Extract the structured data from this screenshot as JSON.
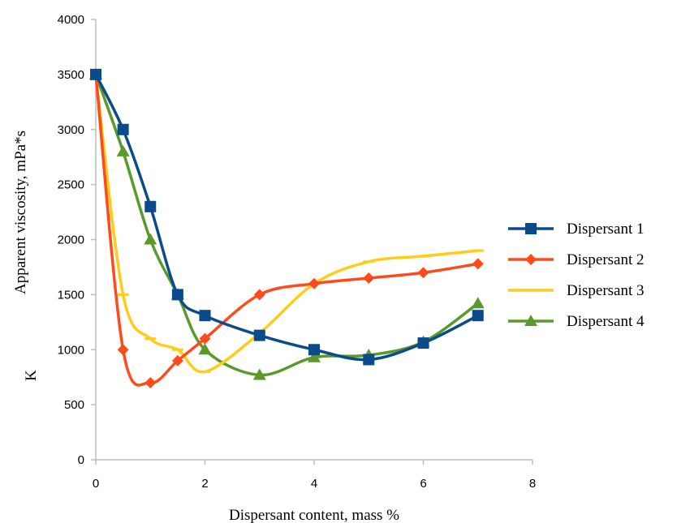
{
  "chart_data": {
    "type": "line",
    "title": "",
    "xlabel": "Dispersant content, mass %",
    "ylabel": "Apparent viscosity, mPa*s",
    "ylabel_extra": "K",
    "xlim": [
      0,
      8
    ],
    "ylim": [
      0,
      4000
    ],
    "x_ticks": [
      0,
      2,
      4,
      6,
      8
    ],
    "y_ticks": [
      0,
      500,
      1000,
      1500,
      2000,
      2500,
      3000,
      3500,
      4000
    ],
    "grid": false,
    "smooth": true,
    "legend_position": "right",
    "series": [
      {
        "name": "Dispersant 1",
        "color": "#0b4a8b",
        "marker": "square",
        "x": [
          0,
          0.5,
          1,
          1.5,
          2,
          3,
          4,
          5,
          6,
          7
        ],
        "y": [
          3500,
          3000,
          2300,
          1500,
          1310,
          1130,
          1000,
          910,
          1060,
          1310
        ]
      },
      {
        "name": "Dispersant 2",
        "color": "#ff4a1c",
        "marker": "diamond",
        "x": [
          0,
          0.5,
          1,
          1.5,
          2,
          3,
          4,
          5,
          6,
          7
        ],
        "y": [
          3500,
          1000,
          700,
          900,
          1100,
          1500,
          1600,
          1650,
          1700,
          1780
        ]
      },
      {
        "name": "Dispersant 3",
        "color": "#ffcc1a",
        "marker": "dash",
        "x": [
          0,
          0.5,
          1,
          1.5,
          2,
          3,
          4,
          5,
          6,
          7
        ],
        "y": [
          3500,
          1500,
          1100,
          1000,
          800,
          1150,
          1600,
          1800,
          1850,
          1900
        ]
      },
      {
        "name": "Dispersant 4",
        "color": "#5a9a2a",
        "marker": "triangle",
        "x": [
          0,
          0.5,
          1,
          1.5,
          2,
          3,
          4,
          5,
          6,
          7
        ],
        "y": [
          3500,
          2800,
          2000,
          1500,
          1000,
          770,
          930,
          950,
          1070,
          1420
        ]
      }
    ]
  }
}
